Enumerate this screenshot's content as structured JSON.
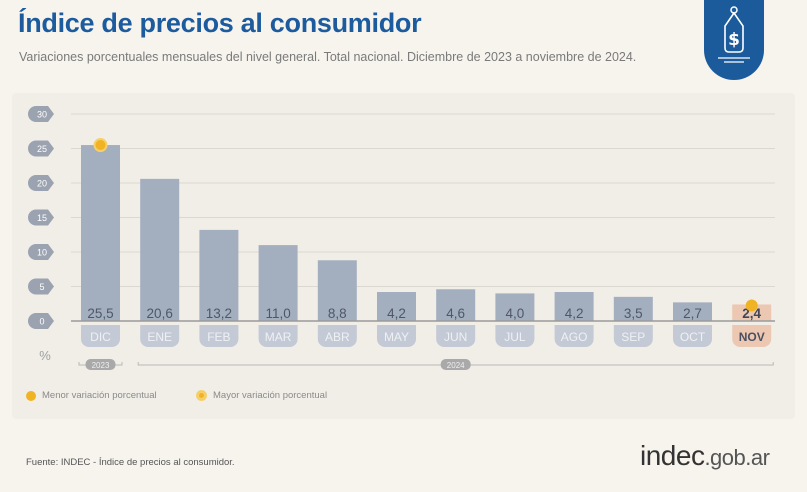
{
  "header": {
    "title": "Índice de precios al consumidor",
    "subtitle": "Variaciones porcentuales mensuales del nivel general. Total nacional. Diciembre de 2023 a noviembre de 2024."
  },
  "chart_data": {
    "type": "bar",
    "categories": [
      "DIC",
      "ENE",
      "FEB",
      "MAR",
      "ABR",
      "MAY",
      "JUN",
      "JUL",
      "AGO",
      "SEP",
      "OCT",
      "NOV"
    ],
    "values": [
      25.5,
      20.6,
      13.2,
      11.0,
      8.8,
      4.2,
      4.6,
      4.0,
      4.2,
      3.5,
      2.7,
      2.4
    ],
    "value_labels": [
      "25,5",
      "20,6",
      "13,2",
      "11,0",
      "8,8",
      "4,2",
      "4,6",
      "4,0",
      "4,2",
      "3,5",
      "2,7",
      "2,4"
    ],
    "ylim": [
      0,
      30
    ],
    "yticks": [
      "0",
      "5",
      "10",
      "15",
      "20",
      "25",
      "30"
    ],
    "ylabel": "%",
    "years": [
      {
        "label": "2023",
        "span": [
          0,
          0
        ]
      },
      {
        "label": "2024",
        "span": [
          1,
          11
        ]
      }
    ],
    "grid": true,
    "highlight_max": "DIC",
    "highlight_min": "NOV",
    "colors": {
      "bar": "#a3afbf",
      "highlight": "#ecc8b2",
      "marker": "#f0b323",
      "axis_bubble": "#9ba2b0"
    }
  },
  "legend": {
    "min_label": "Menor variación porcentual",
    "max_label": "Mayor variación porcentual"
  },
  "footer": {
    "source": "Fuente: INDEC - Índice de precios al consumidor.",
    "logo_main": "indec",
    "logo_suffix": ".gob.ar"
  },
  "icons": {
    "badge": "price-tag-dollar-icon"
  }
}
